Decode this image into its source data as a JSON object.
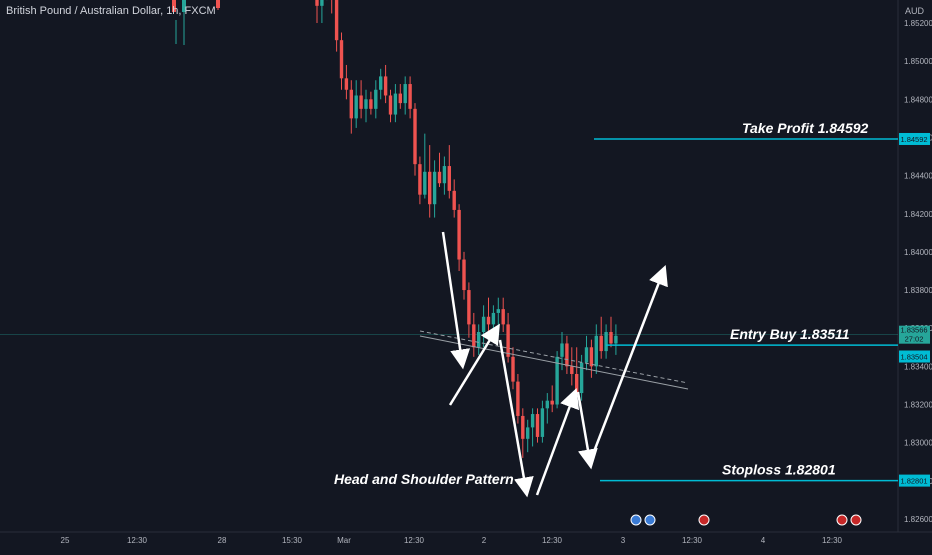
{
  "header": {
    "symbol_line": "British Pound / Australian Dollar, 1h, FXCM",
    "currency": "AUD"
  },
  "theme": {
    "background": "#131722",
    "up": "#26a69a",
    "down": "#ef5350",
    "level_line": "#00bcd4",
    "text": "#b2b5be",
    "annotation_text": "#ffffff"
  },
  "chart_data": {
    "type": "candlestick",
    "title": "British Pound / Australian Dollar, 1h, FXCM",
    "symbol": "GBPAUD",
    "interval": "1h",
    "source": "FXCM",
    "ylim": [
      1.8246,
      1.8534
    ],
    "y_ticks": [
      "1.85200",
      "1.85000",
      "1.84800",
      "1.84600",
      "1.84400",
      "1.84200",
      "1.84000",
      "1.83800",
      "1.83600",
      "1.83400",
      "1.83200",
      "1.83000",
      "1.82800",
      "1.82600"
    ],
    "x_ticks": [
      "25",
      "12:30",
      "28",
      "15:30",
      "Mar",
      "12:30",
      "2",
      "12:30",
      "3",
      "12:30",
      "4",
      "12:30"
    ],
    "candles": [
      {
        "o": 1.8546,
        "h": 1.855,
        "l": 1.852,
        "c": 1.8529
      },
      {
        "o": 1.8529,
        "h": 1.8545,
        "l": 1.852,
        "c": 1.854
      },
      {
        "o": 1.854,
        "h": 1.856,
        "l": 1.8532,
        "c": 1.8552
      },
      {
        "o": 1.8552,
        "h": 1.856,
        "l": 1.8525,
        "c": 1.8534
      },
      {
        "o": 1.8534,
        "h": 1.854,
        "l": 1.8505,
        "c": 1.8511
      },
      {
        "o": 1.8511,
        "h": 1.8515,
        "l": 1.8485,
        "c": 1.8491
      },
      {
        "o": 1.8491,
        "h": 1.8498,
        "l": 1.848,
        "c": 1.8485
      },
      {
        "o": 1.8485,
        "h": 1.849,
        "l": 1.8462,
        "c": 1.847
      },
      {
        "o": 1.847,
        "h": 1.849,
        "l": 1.8465,
        "c": 1.8482
      },
      {
        "o": 1.8482,
        "h": 1.849,
        "l": 1.847,
        "c": 1.8475
      },
      {
        "o": 1.8475,
        "h": 1.8485,
        "l": 1.8468,
        "c": 1.848
      },
      {
        "o": 1.848,
        "h": 1.8484,
        "l": 1.8472,
        "c": 1.8475
      },
      {
        "o": 1.8475,
        "h": 1.849,
        "l": 1.847,
        "c": 1.8485
      },
      {
        "o": 1.8485,
        "h": 1.8496,
        "l": 1.848,
        "c": 1.8492
      },
      {
        "o": 1.8492,
        "h": 1.8498,
        "l": 1.8478,
        "c": 1.8482
      },
      {
        "o": 1.8482,
        "h": 1.8485,
        "l": 1.8468,
        "c": 1.8472
      },
      {
        "o": 1.8472,
        "h": 1.8488,
        "l": 1.8468,
        "c": 1.8483
      },
      {
        "o": 1.8483,
        "h": 1.8488,
        "l": 1.8475,
        "c": 1.8478
      },
      {
        "o": 1.8478,
        "h": 1.8492,
        "l": 1.8472,
        "c": 1.8488
      },
      {
        "o": 1.8488,
        "h": 1.8492,
        "l": 1.847,
        "c": 1.8475
      },
      {
        "o": 1.8475,
        "h": 1.8478,
        "l": 1.844,
        "c": 1.8446
      },
      {
        "o": 1.8446,
        "h": 1.845,
        "l": 1.8425,
        "c": 1.843
      },
      {
        "o": 1.843,
        "h": 1.8462,
        "l": 1.8428,
        "c": 1.8442
      },
      {
        "o": 1.8442,
        "h": 1.8456,
        "l": 1.8418,
        "c": 1.8425
      },
      {
        "o": 1.8425,
        "h": 1.8448,
        "l": 1.8418,
        "c": 1.8442
      },
      {
        "o": 1.8442,
        "h": 1.8452,
        "l": 1.8434,
        "c": 1.8436
      },
      {
        "o": 1.8436,
        "h": 1.845,
        "l": 1.843,
        "c": 1.8445
      },
      {
        "o": 1.8445,
        "h": 1.8456,
        "l": 1.8428,
        "c": 1.8432
      },
      {
        "o": 1.8432,
        "h": 1.8438,
        "l": 1.8418,
        "c": 1.8422
      },
      {
        "o": 1.8422,
        "h": 1.8425,
        "l": 1.839,
        "c": 1.8396
      },
      {
        "o": 1.8396,
        "h": 1.84,
        "l": 1.8375,
        "c": 1.838
      },
      {
        "o": 1.838,
        "h": 1.8384,
        "l": 1.8355,
        "c": 1.8362
      },
      {
        "o": 1.8362,
        "h": 1.8368,
        "l": 1.8345,
        "c": 1.835
      },
      {
        "o": 1.835,
        "h": 1.8362,
        "l": 1.8346,
        "c": 1.8358
      },
      {
        "o": 1.8358,
        "h": 1.8372,
        "l": 1.835,
        "c": 1.8366
      },
      {
        "o": 1.8366,
        "h": 1.8376,
        "l": 1.8358,
        "c": 1.8362
      },
      {
        "o": 1.8362,
        "h": 1.8372,
        "l": 1.8356,
        "c": 1.8368
      },
      {
        "o": 1.8368,
        "h": 1.8376,
        "l": 1.836,
        "c": 1.837
      },
      {
        "o": 1.837,
        "h": 1.8376,
        "l": 1.8358,
        "c": 1.8362
      },
      {
        "o": 1.8362,
        "h": 1.8368,
        "l": 1.8342,
        "c": 1.8345
      },
      {
        "o": 1.8345,
        "h": 1.835,
        "l": 1.8328,
        "c": 1.8332
      },
      {
        "o": 1.8332,
        "h": 1.8336,
        "l": 1.831,
        "c": 1.8314
      },
      {
        "o": 1.8314,
        "h": 1.8318,
        "l": 1.8292,
        "c": 1.8302
      },
      {
        "o": 1.8302,
        "h": 1.8312,
        "l": 1.8295,
        "c": 1.8308
      },
      {
        "o": 1.8308,
        "h": 1.8318,
        "l": 1.8298,
        "c": 1.8315
      },
      {
        "o": 1.8315,
        "h": 1.8318,
        "l": 1.83,
        "c": 1.8303
      },
      {
        "o": 1.8303,
        "h": 1.8322,
        "l": 1.83,
        "c": 1.8318
      },
      {
        "o": 1.8318,
        "h": 1.8326,
        "l": 1.831,
        "c": 1.8322
      },
      {
        "o": 1.8322,
        "h": 1.833,
        "l": 1.8316,
        "c": 1.832
      },
      {
        "o": 1.832,
        "h": 1.8348,
        "l": 1.8318,
        "c": 1.8345
      },
      {
        "o": 1.8345,
        "h": 1.8358,
        "l": 1.8338,
        "c": 1.8352
      },
      {
        "o": 1.8352,
        "h": 1.8356,
        "l": 1.8336,
        "c": 1.834
      },
      {
        "o": 1.834,
        "h": 1.835,
        "l": 1.833,
        "c": 1.8336
      },
      {
        "o": 1.8336,
        "h": 1.835,
        "l": 1.8322,
        "c": 1.8326
      },
      {
        "o": 1.8326,
        "h": 1.8346,
        "l": 1.8322,
        "c": 1.8342
      },
      {
        "o": 1.8342,
        "h": 1.8356,
        "l": 1.8338,
        "c": 1.835
      },
      {
        "o": 1.835,
        "h": 1.8354,
        "l": 1.8334,
        "c": 1.834
      },
      {
        "o": 1.834,
        "h": 1.8362,
        "l": 1.8336,
        "c": 1.8356
      },
      {
        "o": 1.8356,
        "h": 1.8366,
        "l": 1.8344,
        "c": 1.8348
      },
      {
        "o": 1.8348,
        "h": 1.8362,
        "l": 1.8344,
        "c": 1.8358
      },
      {
        "o": 1.8358,
        "h": 1.8366,
        "l": 1.835,
        "c": 1.8352
      },
      {
        "o": 1.8352,
        "h": 1.8362,
        "l": 1.8346,
        "c": 1.8356
      }
    ],
    "levels": [
      {
        "label": "Take Profit 1.84592",
        "value": 1.84592,
        "axis_label": "1.84592"
      },
      {
        "label": "Entry Buy 1.83511",
        "value": 1.83511,
        "axis_label": ""
      },
      {
        "label": "Stoploss 1.82801",
        "value": 1.82801,
        "axis_label": "1.82801"
      }
    ],
    "price_tags": [
      {
        "text": "1.83566",
        "value": 1.83566,
        "color": "#26a69a"
      },
      {
        "text": "27:02",
        "value": 1.83566,
        "color": "#26a69a",
        "sub": true
      },
      {
        "text": "1.83504",
        "value": 1.83504,
        "color": "#00bcd4"
      }
    ],
    "annotations": [
      {
        "text": "Head and Shoulder Pattern"
      }
    ],
    "event_icons_flags": [
      "nz-au",
      "au-nz",
      "gb",
      "gb",
      "gb"
    ]
  }
}
